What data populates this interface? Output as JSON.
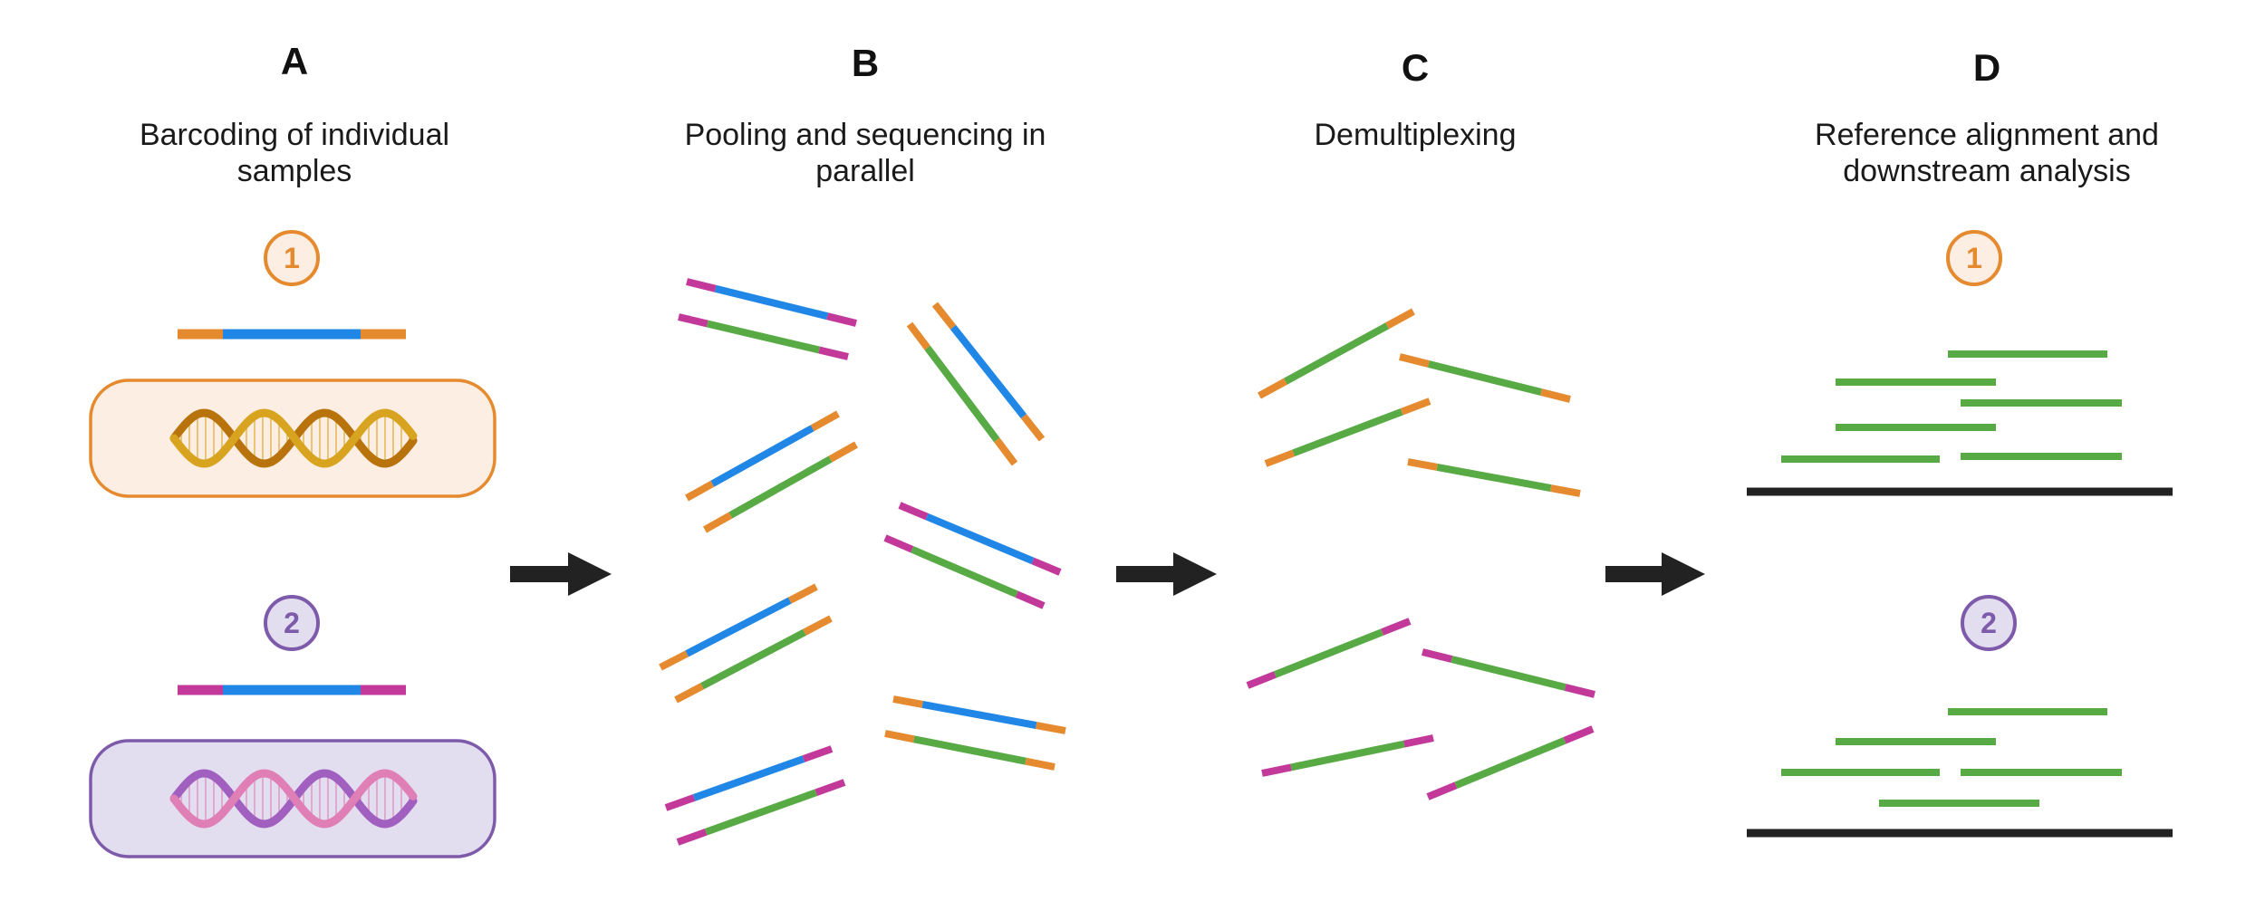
{
  "colors": {
    "orange": "#E58A2E",
    "orange_fill": "#FCEEE2",
    "purple": "#7E5BAA",
    "purple_fill": "#E3DDF0",
    "blue": "#2187E6",
    "green": "#58AA45",
    "magenta": "#C2399A",
    "black": "#222222",
    "dna_gold": "#D8A420",
    "dna_brown": "#B8730C",
    "dna_pink": "#DF7FB5",
    "dna_violet": "#A160C0"
  },
  "panels": [
    {
      "letter": "A",
      "caption": [
        "Barcoding of individual",
        "samples"
      ]
    },
    {
      "letter": "B",
      "caption": [
        "Pooling and sequencing in",
        "parallel"
      ]
    },
    {
      "letter": "C",
      "caption": [
        "Demultiplexing"
      ]
    },
    {
      "letter": "D",
      "caption": [
        "Reference alignment and",
        "downstream analysis"
      ]
    }
  ],
  "samples": [
    {
      "number": "1",
      "color": "orange",
      "barcode": "orange",
      "dna": [
        "dna_gold",
        "dna_brown"
      ]
    },
    {
      "number": "2",
      "color": "purple",
      "barcode": "magenta",
      "dna": [
        "dna_pink",
        "dna_violet"
      ]
    }
  ],
  "arrow_icon": "right-arrow-icon",
  "dna_icon": "dna-helix-icon"
}
